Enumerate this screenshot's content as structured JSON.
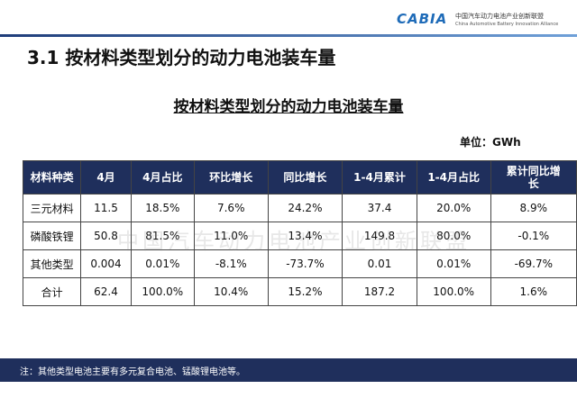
{
  "header": {
    "logo": "CABIA",
    "org_cn": "中国汽车动力电池产业创新联盟",
    "org_en": "China Automotive Battery Innovation Alliance"
  },
  "title": "3.1 按材料类型划分的动力电池装车量",
  "table": {
    "title": "按材料类型划分的动力电池装车量",
    "unit": "单位：GWh",
    "columns": [
      "材料种类",
      "4月",
      "4月占比",
      "环比增长",
      "同比增长",
      "1-4月累计",
      "1-4月占比",
      "累计同比增长"
    ],
    "rows": [
      [
        "三元材料",
        "11.5",
        "18.5%",
        "7.6%",
        "24.2%",
        "37.4",
        "20.0%",
        "8.9%"
      ],
      [
        "磷酸铁锂",
        "50.8",
        "81.5%",
        "11.0%",
        "13.4%",
        "149.8",
        "80.0%",
        "-0.1%"
      ],
      [
        "其他类型",
        "0.004",
        "0.01%",
        "-8.1%",
        "-73.7%",
        "0.01",
        "0.01%",
        "-69.7%"
      ],
      [
        "合计",
        "62.4",
        "100.0%",
        "10.4%",
        "15.2%",
        "187.2",
        "100.0%",
        "1.6%"
      ]
    ]
  },
  "watermark": "中国汽车动力电池产业创新联盟",
  "note": "注：其他类型电池主要有多元复合电池、锰酸锂电池等。"
}
